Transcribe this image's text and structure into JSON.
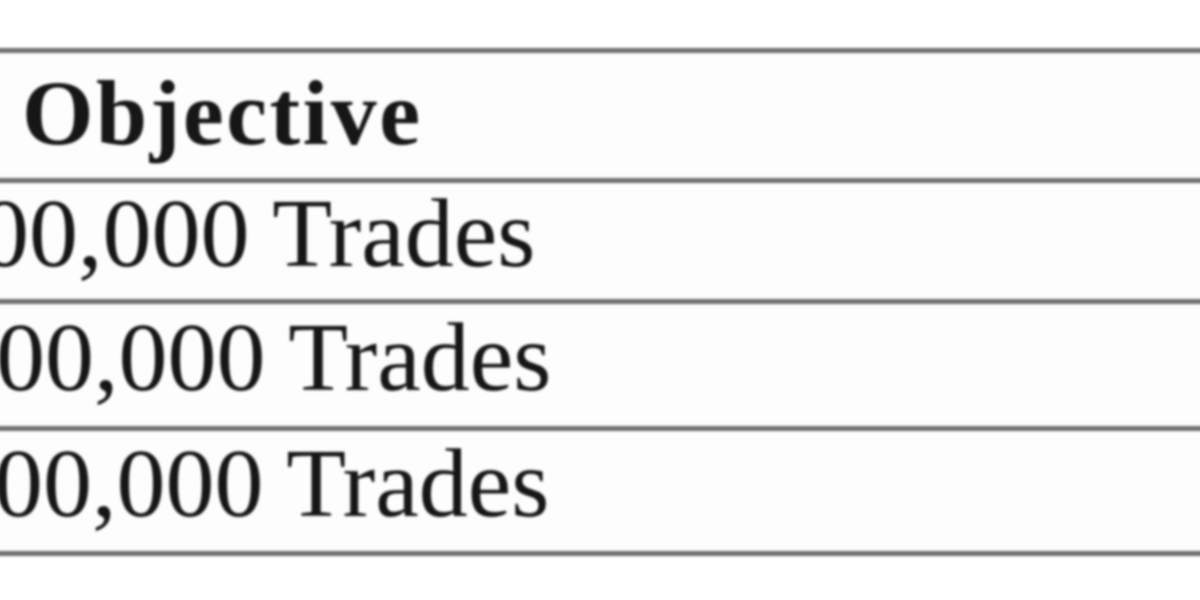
{
  "table": {
    "header": {
      "objective": "Objective"
    },
    "rows": [
      {
        "objective": "00,000 Trades"
      },
      {
        "objective": "00,000 Trades"
      },
      {
        "objective": "00,000 Trades"
      }
    ]
  },
  "colors": {
    "border_heavy": "#6e6e6e",
    "border_light": "#dcdcdc",
    "text": "#161616",
    "background": "#ffffff",
    "row_background": "#fdfdfd"
  },
  "chart_data": {
    "type": "table",
    "columns": [
      "Objective"
    ],
    "rows": [
      [
        "00,000 Trades"
      ],
      [
        "00,000 Trades"
      ],
      [
        "00,000 Trades"
      ]
    ],
    "title": "",
    "layout_hints": {
      "left_edge_clipped": true,
      "right_column_divider_visible": true,
      "header_bold": true
    }
  }
}
